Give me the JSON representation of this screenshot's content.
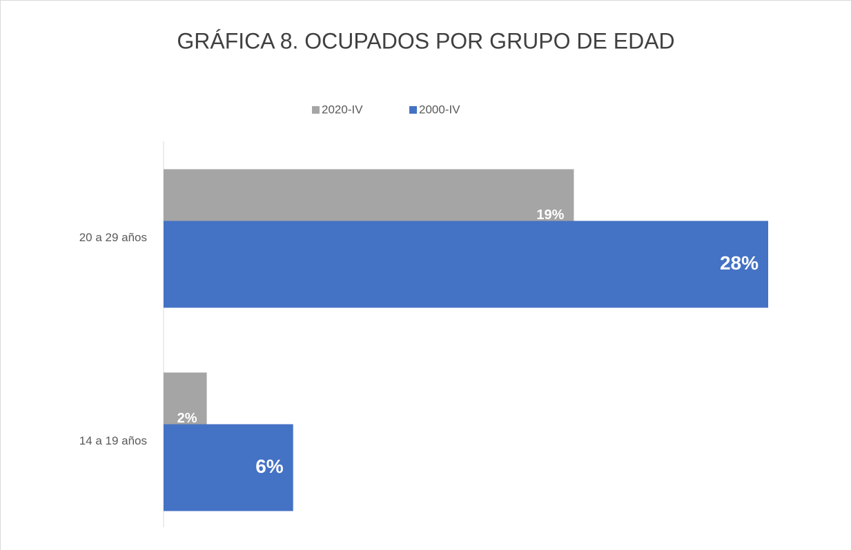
{
  "chart_data": {
    "type": "hbar",
    "title": "GRÁFICA 8. OCUPADOS POR GRUPO DE EDAD",
    "categories": [
      "14 a 19 años",
      "20 a 29 años"
    ],
    "series": [
      {
        "name": "2020-IV",
        "color": "#a5a5a5",
        "values": [
          2,
          19
        ],
        "value_labels": [
          "2%",
          "19%"
        ]
      },
      {
        "name": "2000-IV",
        "color": "#4472c4",
        "values": [
          6,
          28
        ],
        "value_labels": [
          "6%",
          "28%"
        ]
      }
    ],
    "xlim": [
      0,
      28
    ],
    "legend": "top"
  }
}
